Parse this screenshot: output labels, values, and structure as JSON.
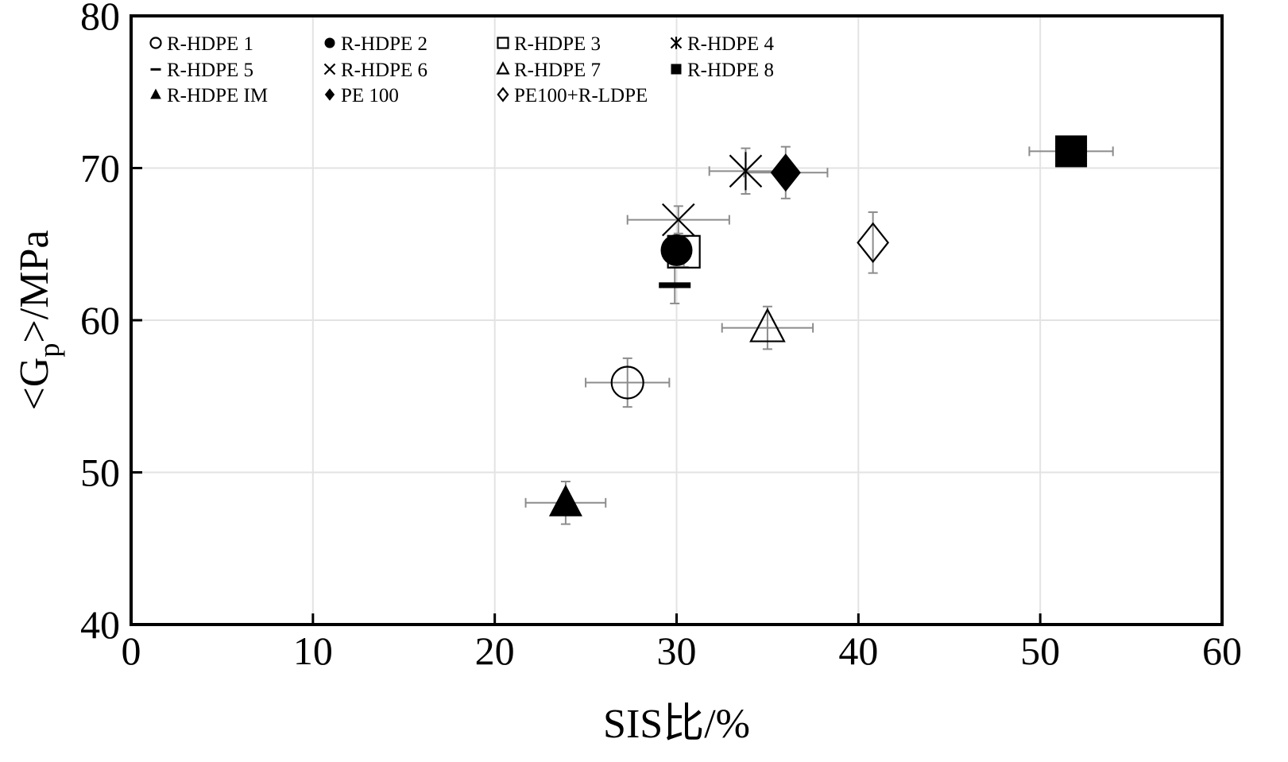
{
  "chart_data": {
    "type": "scatter",
    "title": "",
    "xlabel": "SIS比/%",
    "ylabel_main": "<G",
    "ylabel_sub": "p",
    "ylabel_rest": ">/MPa",
    "xlim": [
      0,
      60
    ],
    "ylim": [
      40,
      80
    ],
    "xticks": [
      "0",
      "10",
      "20",
      "30",
      "40",
      "50",
      "60"
    ],
    "yticks": [
      "40",
      "50",
      "60",
      "70",
      "80"
    ],
    "grid": true,
    "legend_position": "top-left",
    "error_bar_color": "#8c8c8c",
    "series": [
      {
        "name": "R-HDPE 1",
        "marker": "circle-open",
        "x": 27.3,
        "y": 55.9,
        "xerr": 2.3,
        "yerr": 1.6
      },
      {
        "name": "R-HDPE 2",
        "marker": "circle-filled",
        "x": 30.0,
        "y": 64.6,
        "xerr": 0,
        "yerr": 0
      },
      {
        "name": "R-HDPE 3",
        "marker": "square-open",
        "x": 30.4,
        "y": 64.5,
        "xerr": 0,
        "yerr": 1.0
      },
      {
        "name": "R-HDPE 4",
        "marker": "asterisk",
        "x": 33.8,
        "y": 69.8,
        "xerr": 2.0,
        "yerr": 1.5
      },
      {
        "name": "R-HDPE 5",
        "marker": "dash",
        "x": 29.9,
        "y": 62.3,
        "xerr": 0,
        "yerr": 1.2
      },
      {
        "name": "R-HDPE 6",
        "marker": "x",
        "x": 30.1,
        "y": 66.6,
        "xerr": 2.8,
        "yerr": 0.9
      },
      {
        "name": "R-HDPE 7",
        "marker": "triangle-open",
        "x": 35.0,
        "y": 59.5,
        "xerr": 2.5,
        "yerr": 1.4
      },
      {
        "name": "R-HDPE 8",
        "marker": "square-filled",
        "x": 51.7,
        "y": 71.1,
        "xerr": 2.3,
        "yerr": 0
      },
      {
        "name": "R-HDPE IM",
        "marker": "triangle-filled",
        "x": 23.9,
        "y": 48.0,
        "xerr": 2.2,
        "yerr": 1.4
      },
      {
        "name": "PE 100",
        "marker": "diamond-filled",
        "x": 36.0,
        "y": 69.7,
        "xerr": 2.3,
        "yerr": 1.7
      },
      {
        "name": "PE100+R-LDPE",
        "marker": "diamond-open",
        "x": 40.8,
        "y": 65.1,
        "xerr": 0,
        "yerr": 2.0
      }
    ]
  }
}
